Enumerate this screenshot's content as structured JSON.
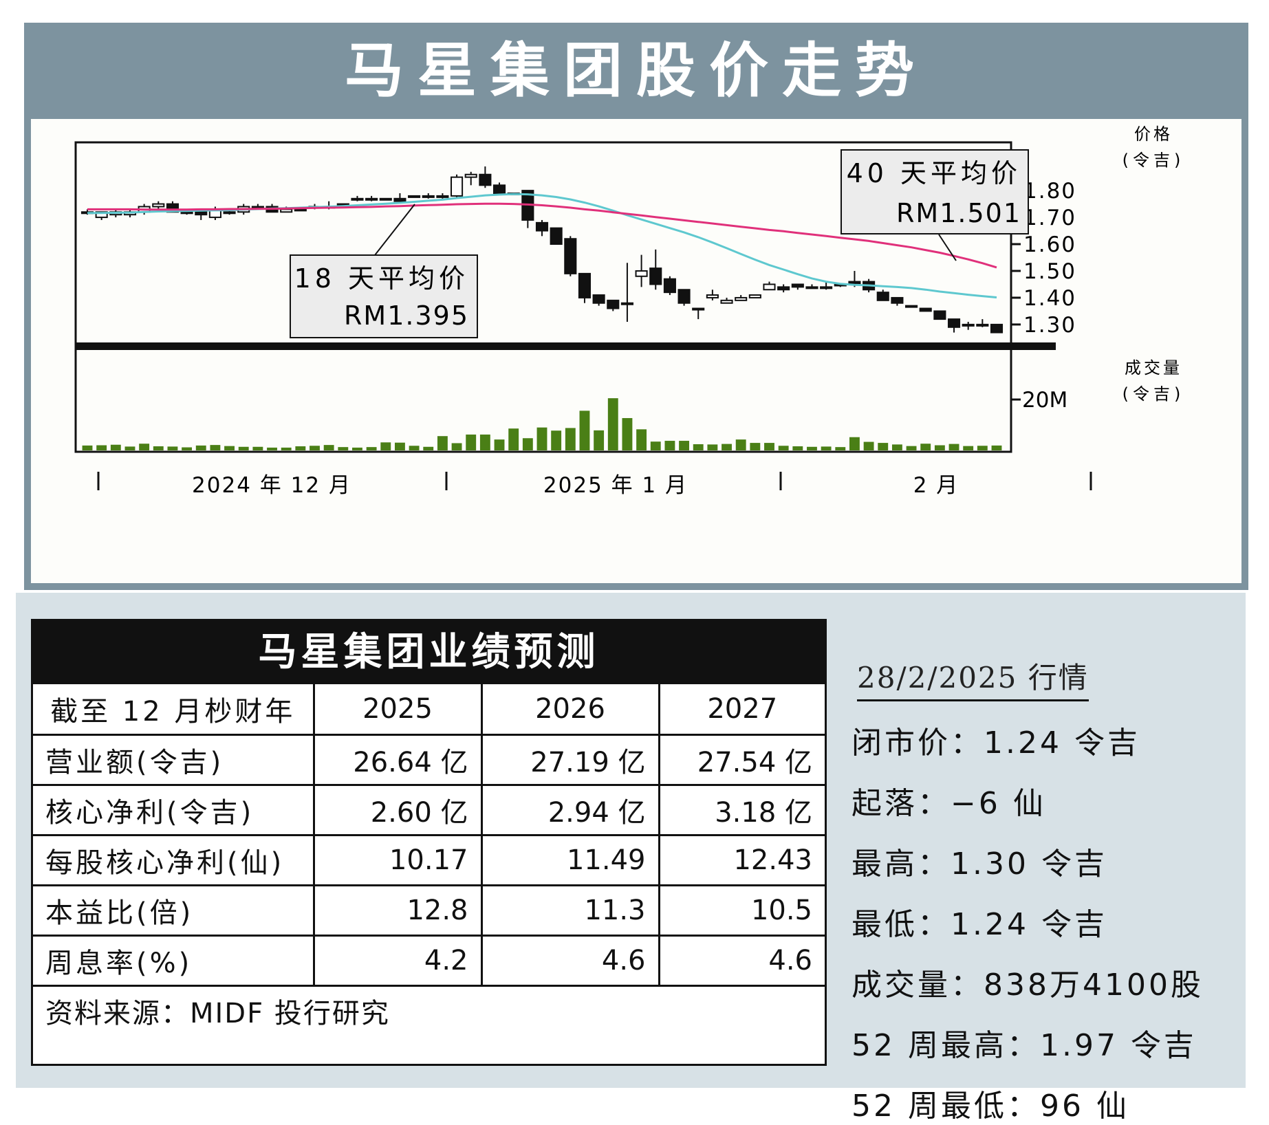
{
  "chart_title": "马星集团股价走势",
  "chart_data": {
    "type": "candlestick",
    "price_axis": {
      "label_line1": "价格",
      "label_line2": "(令吉)",
      "ticks": [
        "1.80",
        "1.70",
        "1.60",
        "1.50",
        "1.40",
        "1.30"
      ],
      "tick_values": [
        1.8,
        1.7,
        1.6,
        1.5,
        1.4,
        1.3
      ],
      "range": [
        1.215,
        1.98
      ]
    },
    "volume_axis": {
      "label_line1": "成交量",
      "label_line2": "(令吉)",
      "ticks": [
        "20M"
      ],
      "tick_values": [
        20
      ],
      "range": [
        0,
        40
      ]
    },
    "x_labels": [
      "2024 年 12 月",
      "2025 年 1 月",
      "2 月"
    ],
    "candles": [
      [
        1.72,
        1.72,
        1.73,
        1.71
      ],
      [
        1.7,
        1.72,
        1.72,
        1.69
      ],
      [
        1.71,
        1.72,
        1.73,
        1.7
      ],
      [
        1.71,
        1.72,
        1.73,
        1.7
      ],
      [
        1.72,
        1.74,
        1.75,
        1.71
      ],
      [
        1.74,
        1.75,
        1.76,
        1.73
      ],
      [
        1.75,
        1.72,
        1.76,
        1.72
      ],
      [
        1.72,
        1.72,
        1.73,
        1.71
      ],
      [
        1.72,
        1.71,
        1.73,
        1.69
      ],
      [
        1.7,
        1.73,
        1.74,
        1.69
      ],
      [
        1.72,
        1.72,
        1.73,
        1.71
      ],
      [
        1.72,
        1.74,
        1.75,
        1.71
      ],
      [
        1.74,
        1.74,
        1.75,
        1.73
      ],
      [
        1.74,
        1.72,
        1.75,
        1.72
      ],
      [
        1.72,
        1.73,
        1.74,
        1.72
      ],
      [
        1.73,
        1.73,
        1.74,
        1.73
      ],
      [
        1.74,
        1.74,
        1.75,
        1.73
      ],
      [
        1.74,
        1.74,
        1.76,
        1.73
      ],
      [
        1.75,
        1.75,
        1.75,
        1.75
      ],
      [
        1.77,
        1.77,
        1.78,
        1.76
      ],
      [
        1.77,
        1.77,
        1.78,
        1.76
      ],
      [
        1.77,
        1.77,
        1.77,
        1.77
      ],
      [
        1.77,
        1.76,
        1.79,
        1.76
      ],
      [
        1.78,
        1.78,
        1.78,
        1.78
      ],
      [
        1.78,
        1.78,
        1.79,
        1.77
      ],
      [
        1.78,
        1.78,
        1.79,
        1.77
      ],
      [
        1.78,
        1.85,
        1.86,
        1.77
      ],
      [
        1.85,
        1.86,
        1.87,
        1.82
      ],
      [
        1.86,
        1.82,
        1.89,
        1.81
      ],
      [
        1.82,
        1.79,
        1.83,
        1.79
      ],
      [
        1.79,
        1.79,
        1.79,
        1.79
      ],
      [
        1.8,
        1.69,
        1.8,
        1.66
      ],
      [
        1.68,
        1.65,
        1.69,
        1.63
      ],
      [
        1.66,
        1.6,
        1.66,
        1.6
      ],
      [
        1.62,
        1.49,
        1.63,
        1.48
      ],
      [
        1.49,
        1.4,
        1.49,
        1.38
      ],
      [
        1.41,
        1.38,
        1.41,
        1.37
      ],
      [
        1.39,
        1.36,
        1.39,
        1.35
      ],
      [
        1.38,
        1.38,
        1.53,
        1.31
      ],
      [
        1.48,
        1.5,
        1.56,
        1.44
      ],
      [
        1.51,
        1.45,
        1.58,
        1.43
      ],
      [
        1.47,
        1.42,
        1.48,
        1.41
      ],
      [
        1.43,
        1.38,
        1.43,
        1.37
      ],
      [
        1.36,
        1.36,
        1.36,
        1.32
      ],
      [
        1.4,
        1.41,
        1.43,
        1.39
      ],
      [
        1.38,
        1.39,
        1.4,
        1.38
      ],
      [
        1.39,
        1.4,
        1.41,
        1.39
      ],
      [
        1.4,
        1.41,
        1.41,
        1.4
      ],
      [
        1.43,
        1.45,
        1.46,
        1.43
      ],
      [
        1.44,
        1.43,
        1.45,
        1.42
      ],
      [
        1.45,
        1.44,
        1.45,
        1.43
      ],
      [
        1.44,
        1.44,
        1.45,
        1.44
      ],
      [
        1.44,
        1.44,
        1.46,
        1.43
      ],
      [
        1.45,
        1.45,
        1.45,
        1.44
      ],
      [
        1.46,
        1.45,
        1.5,
        1.44
      ],
      [
        1.46,
        1.43,
        1.47,
        1.42
      ],
      [
        1.42,
        1.39,
        1.43,
        1.39
      ],
      [
        1.4,
        1.38,
        1.4,
        1.37
      ],
      [
        1.37,
        1.37,
        1.37,
        1.37
      ],
      [
        1.36,
        1.35,
        1.36,
        1.35
      ],
      [
        1.35,
        1.32,
        1.35,
        1.32
      ],
      [
        1.32,
        1.29,
        1.32,
        1.27
      ],
      [
        1.3,
        1.3,
        1.31,
        1.28
      ],
      [
        1.3,
        1.3,
        1.32,
        1.29
      ],
      [
        1.3,
        1.27,
        1.3,
        1.27
      ]
    ],
    "volume": [
      2.4,
      2.5,
      2.7,
      2.0,
      3.1,
      2.1,
      2.0,
      1.7,
      2.4,
      2.6,
      2.2,
      1.9,
      1.9,
      1.6,
      1.6,
      2.1,
      2.3,
      2.6,
      1.8,
      1.6,
      1.8,
      3.6,
      3.5,
      2.3,
      1.9,
      6.0,
      3.3,
      6.6,
      6.6,
      4.7,
      8.9,
      5.2,
      9.3,
      8.1,
      9.1,
      15.7,
      8.2,
      20.5,
      12.9,
      8.6,
      3.9,
      4.2,
      4.2,
      2.9,
      2.8,
      3.0,
      4.7,
      3.4,
      3.4,
      2.3,
      2.1,
      1.9,
      2.0,
      1.8,
      5.6,
      3.8,
      3.4,
      2.8,
      2.2,
      3.1,
      2.5,
      3.0,
      2.2,
      2.3,
      2.4
    ],
    "series": [
      {
        "name": "18 天平均价",
        "label": "18 天平均价",
        "value_label": "RM1.395",
        "color": "#5ec8cf",
        "values": [
          1.716,
          1.716,
          1.717,
          1.718,
          1.72,
          1.722,
          1.723,
          1.724,
          1.725,
          1.726,
          1.727,
          1.729,
          1.731,
          1.733,
          1.734,
          1.736,
          1.738,
          1.74,
          1.742,
          1.745,
          1.748,
          1.751,
          1.754,
          1.758,
          1.762,
          1.766,
          1.772,
          1.777,
          1.782,
          1.785,
          1.787,
          1.786,
          1.782,
          1.776,
          1.767,
          1.755,
          1.741,
          1.725,
          1.708,
          1.692,
          1.676,
          1.66,
          1.644,
          1.626,
          1.606,
          1.585,
          1.563,
          1.542,
          1.522,
          1.505,
          1.488,
          1.472,
          1.46,
          1.452,
          1.448,
          1.446,
          1.443,
          1.44,
          1.436,
          1.43,
          1.423,
          1.417,
          1.411,
          1.406,
          1.401
        ]
      },
      {
        "name": "40 天平均价",
        "label": "40 天平均价",
        "value_label": "RM1.501",
        "color": "#e0307a",
        "values": [
          1.73,
          1.73,
          1.73,
          1.73,
          1.729,
          1.729,
          1.729,
          1.729,
          1.73,
          1.73,
          1.731,
          1.731,
          1.732,
          1.732,
          1.733,
          1.734,
          1.735,
          1.736,
          1.737,
          1.738,
          1.739,
          1.741,
          1.742,
          1.744,
          1.746,
          1.747,
          1.749,
          1.75,
          1.751,
          1.751,
          1.75,
          1.748,
          1.745,
          1.741,
          1.736,
          1.73,
          1.725,
          1.719,
          1.713,
          1.707,
          1.701,
          1.695,
          1.689,
          1.683,
          1.677,
          1.671,
          1.665,
          1.659,
          1.653,
          1.648,
          1.642,
          1.636,
          1.63,
          1.624,
          1.618,
          1.612,
          1.604,
          1.596,
          1.588,
          1.578,
          1.568,
          1.556,
          1.543,
          1.529,
          1.513
        ]
      }
    ]
  },
  "forecast": {
    "title": "马星集团业绩预测",
    "header": [
      "截至 12 月杪财年",
      "2025",
      "2026",
      "2027"
    ],
    "rows": [
      [
        "营业额(令吉)",
        "26.64 亿",
        "27.19 亿",
        "27.54 亿"
      ],
      [
        "核心净利(令吉)",
        "2.60 亿",
        "2.94 亿",
        "3.18 亿"
      ],
      [
        "每股核心净利(仙)",
        "10.17",
        "11.49",
        "12.43"
      ],
      [
        "本益比(倍)",
        "12.8",
        "11.3",
        "10.5"
      ],
      [
        "周息率(%)",
        "4.2",
        "4.6",
        "4.6"
      ]
    ],
    "source": "资料来源：MIDF 投行研究"
  },
  "market": {
    "title": "28/2/2025 行情",
    "items": [
      "闭市价：1.24 令吉",
      "起落：−6 仙",
      "最高：1.30 令吉",
      "最低：1.24 令吉",
      "成交量：838万4100股",
      "52 周最高：1.97 令吉",
      "52 周最低：96 仙"
    ]
  }
}
